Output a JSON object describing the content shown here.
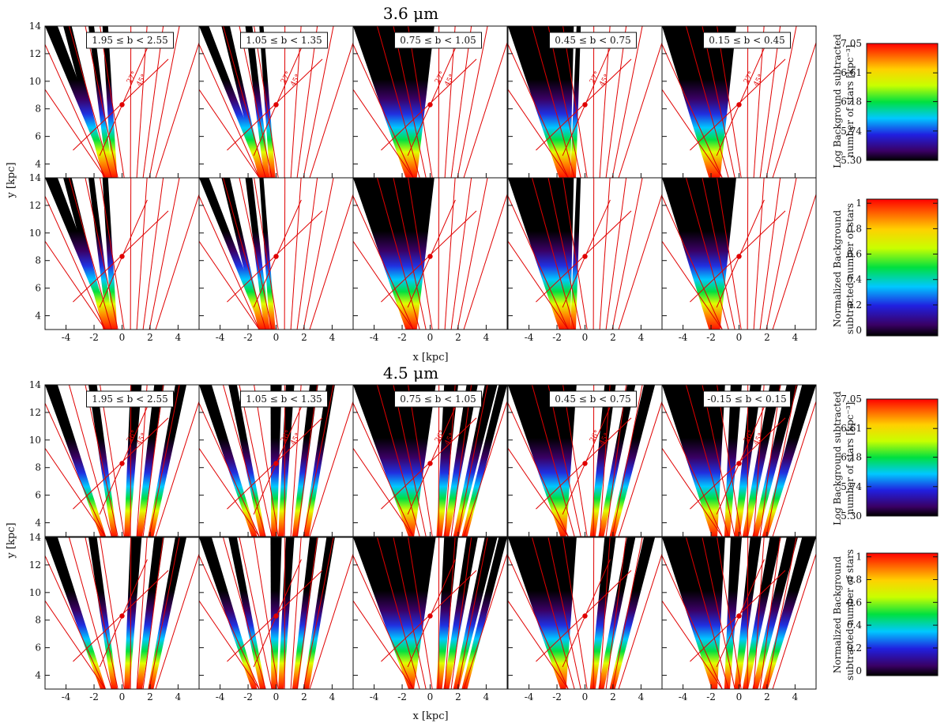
{
  "chart_data": {
    "type": "heatmap",
    "blocks": [
      {
        "title": "3.6 μm",
        "bins": [
          "1.95 ≤ b < 2.55",
          "1.05 ≤ b < 1.35",
          "0.75 ≤ b < 1.05",
          "0.45 ≤ b < 0.75",
          "0.15 ≤ b < 0.45"
        ],
        "angle_labels": [
          "27°",
          "45°"
        ]
      },
      {
        "title": "4.5 μm",
        "bins": [
          "1.95 ≤ b < 2.55",
          "1.05 ≤ b < 1.35",
          "0.75 ≤ b < 1.05",
          "0.45 ≤ b < 0.75",
          "-0.15 ≤ b < 0.15"
        ],
        "angle_labels": [
          "26°",
          "45°"
        ]
      }
    ],
    "xlabel": "x [kpc]",
    "ylabel": "y [kpc]",
    "xlim": [
      -5.5,
      5.5
    ],
    "ylim": [
      3,
      14
    ],
    "x_ticks": [
      "-4",
      "-2",
      "0",
      "2",
      "4"
    ],
    "y_ticks": [
      "4",
      "6",
      "8",
      "10",
      "12",
      "14"
    ],
    "sun_marker": {
      "x": 0,
      "y": 8.3
    },
    "colorbars": [
      {
        "label_line1": "Log Background subtracted",
        "label_line2": "number of stars [kpc⁻³]",
        "ticks": [
          "5.30",
          "5.74",
          "6.18",
          "6.61",
          "7.05"
        ],
        "range": [
          5.3,
          7.05
        ]
      },
      {
        "label_line1": "Normalized Background",
        "label_line2": "subtracted number of stars",
        "ticks": [
          "0",
          "0.2",
          "0.4",
          "0.6",
          "0.8",
          "1"
        ],
        "range": [
          0,
          1
        ]
      }
    ],
    "colors": {
      "overlay_lines": "#e00000",
      "masked": "#000000",
      "background": "#ffffff"
    }
  }
}
